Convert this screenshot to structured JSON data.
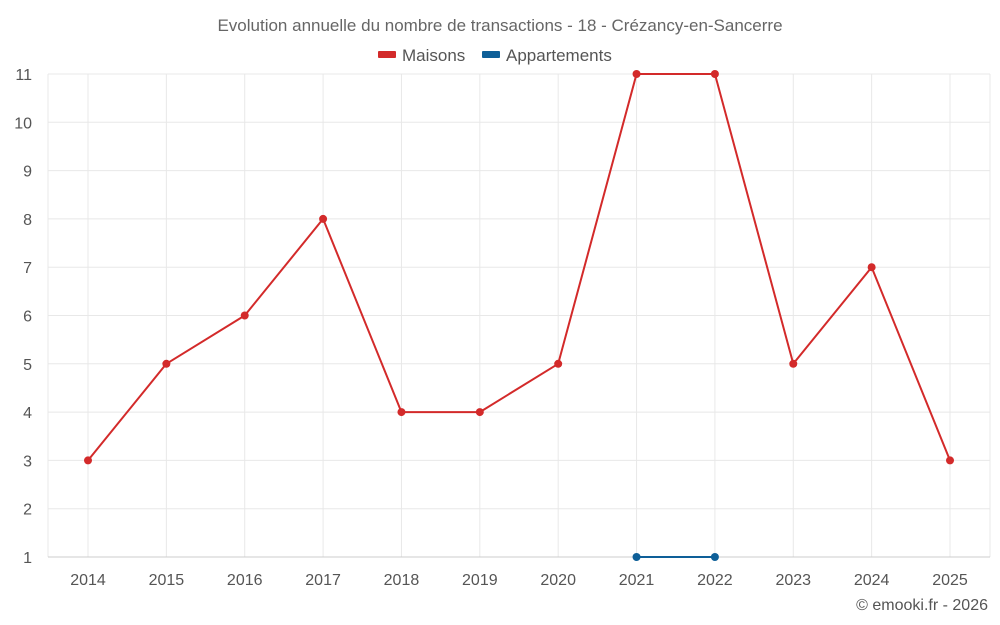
{
  "chart_data": {
    "type": "line",
    "title": "Evolution annuelle du nombre de transactions - 18 - Crézancy-en-Sancerre",
    "categories": [
      "2014",
      "2015",
      "2016",
      "2017",
      "2018",
      "2019",
      "2020",
      "2021",
      "2022",
      "2023",
      "2024",
      "2025"
    ],
    "series": [
      {
        "name": "Maisons",
        "color": "#d32a2a",
        "values": [
          3,
          5,
          6,
          8,
          4,
          4,
          5,
          11,
          11,
          5,
          7,
          3
        ]
      },
      {
        "name": "Appartements",
        "color": "#0e5f98",
        "values": [
          null,
          null,
          null,
          null,
          null,
          null,
          null,
          1,
          1,
          null,
          null,
          null
        ]
      }
    ],
    "ylim": [
      1,
      11
    ],
    "yticks": [
      "1",
      "2",
      "3",
      "4",
      "5",
      "6",
      "7",
      "8",
      "9",
      "10",
      "11"
    ],
    "xlabel": "",
    "ylabel": "",
    "grid": true,
    "legend_position": "top-center"
  },
  "credit": "© emooki.fr - 2026"
}
